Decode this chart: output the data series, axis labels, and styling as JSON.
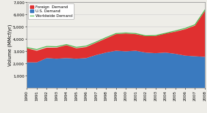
{
  "years": [
    1990,
    1991,
    1992,
    1993,
    1994,
    1995,
    1996,
    1997,
    1998,
    1999,
    2000,
    2001,
    2002,
    2003,
    2004,
    2005,
    2006,
    2007,
    2008
  ],
  "us_demand": [
    2100,
    2100,
    2450,
    2400,
    2450,
    2400,
    2450,
    2700,
    2900,
    3050,
    3000,
    3050,
    2900,
    2850,
    2900,
    2800,
    2650,
    2600,
    2550
  ],
  "foreign_demand": [
    1150,
    950,
    850,
    900,
    1050,
    850,
    900,
    1000,
    1150,
    1350,
    1450,
    1350,
    1350,
    1400,
    1550,
    1800,
    2150,
    2500,
    3750
  ],
  "worldwide_line": [
    3300,
    3150,
    3400,
    3380,
    3550,
    3330,
    3430,
    3760,
    4120,
    4450,
    4500,
    4450,
    4270,
    4290,
    4470,
    4660,
    4870,
    5170,
    6370
  ],
  "us_color": "#3a7abf",
  "foreign_color": "#e03030",
  "worldwide_color": "#4ab84a",
  "bg_color": "#eeede8",
  "ylabel": "Volume (MMcf/yr)",
  "ylim": [
    0,
    7000
  ],
  "yticks": [
    1000,
    2000,
    3000,
    4000,
    5000,
    6000,
    7000
  ],
  "legend_labels": [
    "Foreign  Demand",
    "U.S. Demand",
    "Worldwide Demand"
  ],
  "axis_fontsize": 5.0,
  "tick_fontsize": 4.2,
  "legend_fontsize": 4.0
}
